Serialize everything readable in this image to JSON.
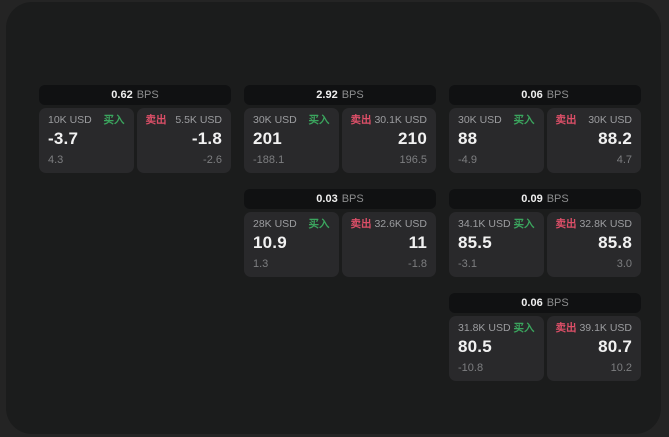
{
  "labels": {
    "bps_unit": "BPS",
    "buy": "买入",
    "sell": "卖出"
  },
  "colors": {
    "outer_bg": "#242424",
    "window_bg": "#1b1c1c",
    "card_header_bg": "#101112",
    "panel_bg": "#29292b",
    "text_primary": "#f2f2f2",
    "text_muted": "#8d8e8f",
    "buy_green": "#3ba55e",
    "sell_red": "#dd4f68"
  },
  "cards": [
    {
      "bps": "0.62",
      "buy": {
        "amount": "10K USD",
        "value": "-3.7",
        "delta": "4.3"
      },
      "sell": {
        "amount": "5.5K USD",
        "value": "-1.8",
        "delta": "-2.6"
      }
    },
    {
      "bps": "2.92",
      "buy": {
        "amount": "30K USD",
        "value": "201",
        "delta": "-188.1"
      },
      "sell": {
        "amount": "30.1K USD",
        "value": "210",
        "delta": "196.5"
      }
    },
    {
      "bps": "0.06",
      "buy": {
        "amount": "30K USD",
        "value": "88",
        "delta": "-4.9"
      },
      "sell": {
        "amount": "30K USD",
        "value": "88.2",
        "delta": "4.7"
      }
    },
    {
      "bps": "0.03",
      "buy": {
        "amount": "28K USD",
        "value": "10.9",
        "delta": "1.3"
      },
      "sell": {
        "amount": "32.6K USD",
        "value": "11",
        "delta": "-1.8"
      }
    },
    {
      "bps": "0.09",
      "buy": {
        "amount": "34.1K USD",
        "value": "85.5",
        "delta": "-3.1"
      },
      "sell": {
        "amount": "32.8K USD",
        "value": "85.8",
        "delta": "3.0"
      }
    },
    {
      "bps": "0.06",
      "buy": {
        "amount": "31.8K USD",
        "value": "80.5",
        "delta": "-10.8"
      },
      "sell": {
        "amount": "39.1K USD",
        "value": "80.7",
        "delta": "10.2"
      }
    }
  ]
}
